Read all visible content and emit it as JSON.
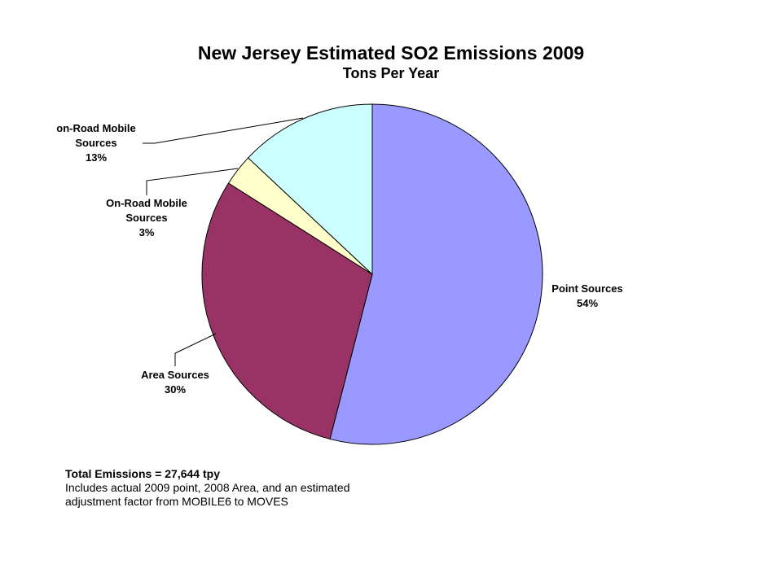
{
  "chart_data": {
    "type": "pie",
    "title": "New Jersey Estimated SO2 Emissions 2009",
    "subtitle": "Tons Per Year",
    "categories": [
      "Point Sources",
      "Area Sources",
      "On-Road Mobile Sources",
      "on-Road Mobile Sources"
    ],
    "values": [
      54,
      30,
      3,
      13
    ],
    "value_labels": [
      "54%",
      "30%",
      "3%",
      "13%"
    ],
    "colors": [
      "#9999ff",
      "#993366",
      "#ffffcc",
      "#ccffff"
    ],
    "total": "Total Emissions = 27,644 tpy",
    "notes": [
      "Includes actual 2009 point, 2008 Area, and an estimated",
      "adjustment factor from MOBILE6 to MOVES"
    ]
  }
}
